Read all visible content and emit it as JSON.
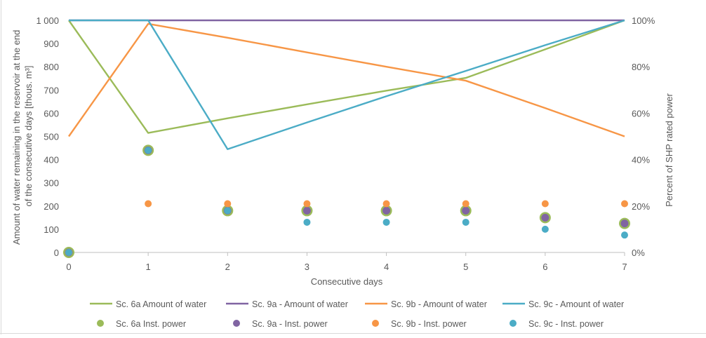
{
  "chart_data": {
    "type": "line",
    "title": "",
    "xlabel": "Consecutive days",
    "ylabel_left": "Amount of water remaining in the reservoir at the end of the consecutive days [thous. m³]",
    "ylabel_right": "Percent of SHP rated power",
    "x": [
      0,
      1,
      2,
      3,
      4,
      5,
      6,
      7
    ],
    "xlim": [
      0,
      7
    ],
    "ylim_left": [
      0,
      1000
    ],
    "ylim_right": [
      0,
      100
    ],
    "y_left_ticks": [
      "0",
      "100",
      "200",
      "300",
      "400",
      "500",
      "600",
      "700",
      "800",
      "900",
      "1 000"
    ],
    "y_right_ticks": [
      "0%",
      "20%",
      "40%",
      "60%",
      "80%",
      "100%"
    ],
    "x_ticks": [
      "0",
      "1",
      "2",
      "3",
      "4",
      "5",
      "6",
      "7"
    ],
    "grid": false,
    "legend_position": "bottom",
    "series": [
      {
        "name": "Sc. 6a Amount of water",
        "kind": "line",
        "axis": "left",
        "color": "#9bbb59",
        "values": [
          1000,
          515,
          578,
          638,
          697,
          752,
          875,
          1000
        ]
      },
      {
        "name": "Sc. 9a - Amount of water",
        "kind": "line",
        "axis": "left",
        "color": "#8064a2",
        "values": [
          1000,
          1000,
          1000,
          1000,
          1000,
          1000,
          1000,
          1000
        ]
      },
      {
        "name": "Sc. 9b - Amount of water",
        "kind": "line",
        "axis": "left",
        "color": "#f79646",
        "values": [
          500,
          985,
          925,
          862,
          800,
          740,
          622,
          500
        ]
      },
      {
        "name": "Sc. 9c - Amount of water",
        "kind": "line",
        "axis": "left",
        "color": "#4bacc6",
        "values": [
          1000,
          1000,
          445,
          560,
          673,
          782,
          893,
          1000
        ]
      },
      {
        "name": "Sc. 6a Inst. power",
        "kind": "scatter",
        "axis": "right",
        "color": "#9bbb59",
        "values": [
          0,
          44,
          18,
          18,
          18,
          18,
          15,
          12.5
        ]
      },
      {
        "name": "Sc. 9a - Inst. power",
        "kind": "scatter",
        "axis": "right",
        "color": "#8064a2",
        "values": [
          0,
          44,
          18,
          18,
          18,
          18,
          15,
          12.5
        ]
      },
      {
        "name": "Sc. 9b - Inst. power",
        "kind": "scatter",
        "axis": "right",
        "color": "#f79646",
        "values": [
          0,
          21,
          21,
          21,
          21,
          21,
          21,
          21
        ]
      },
      {
        "name": "Sc. 9c - Inst. power",
        "kind": "scatter",
        "axis": "right",
        "color": "#4bacc6",
        "values": [
          0,
          44,
          18,
          13,
          13,
          13,
          10,
          7.5
        ]
      }
    ]
  }
}
